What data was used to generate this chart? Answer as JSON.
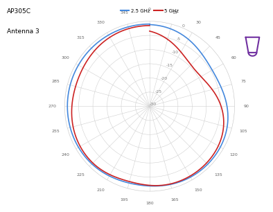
{
  "title_line1": "AP305C",
  "title_line2": "Antenna 3",
  "legend_2_5": "2.5 GHz",
  "legend_5": "5 GHz",
  "color_2_5": "#4488DD",
  "color_5": "#CC2222",
  "color_icon": "#7030A0",
  "r_ticks": [
    0,
    -5,
    -10,
    -15,
    -20,
    -25,
    -30
  ],
  "r_min": -30,
  "r_max": 0,
  "theta_ticks": [
    0,
    15,
    30,
    45,
    60,
    75,
    90,
    105,
    120,
    135,
    150,
    165,
    180,
    195,
    210,
    225,
    240,
    255,
    270,
    285,
    300,
    315,
    330,
    345
  ],
  "background_color": "#ffffff",
  "grid_color": "#d0d0d0"
}
